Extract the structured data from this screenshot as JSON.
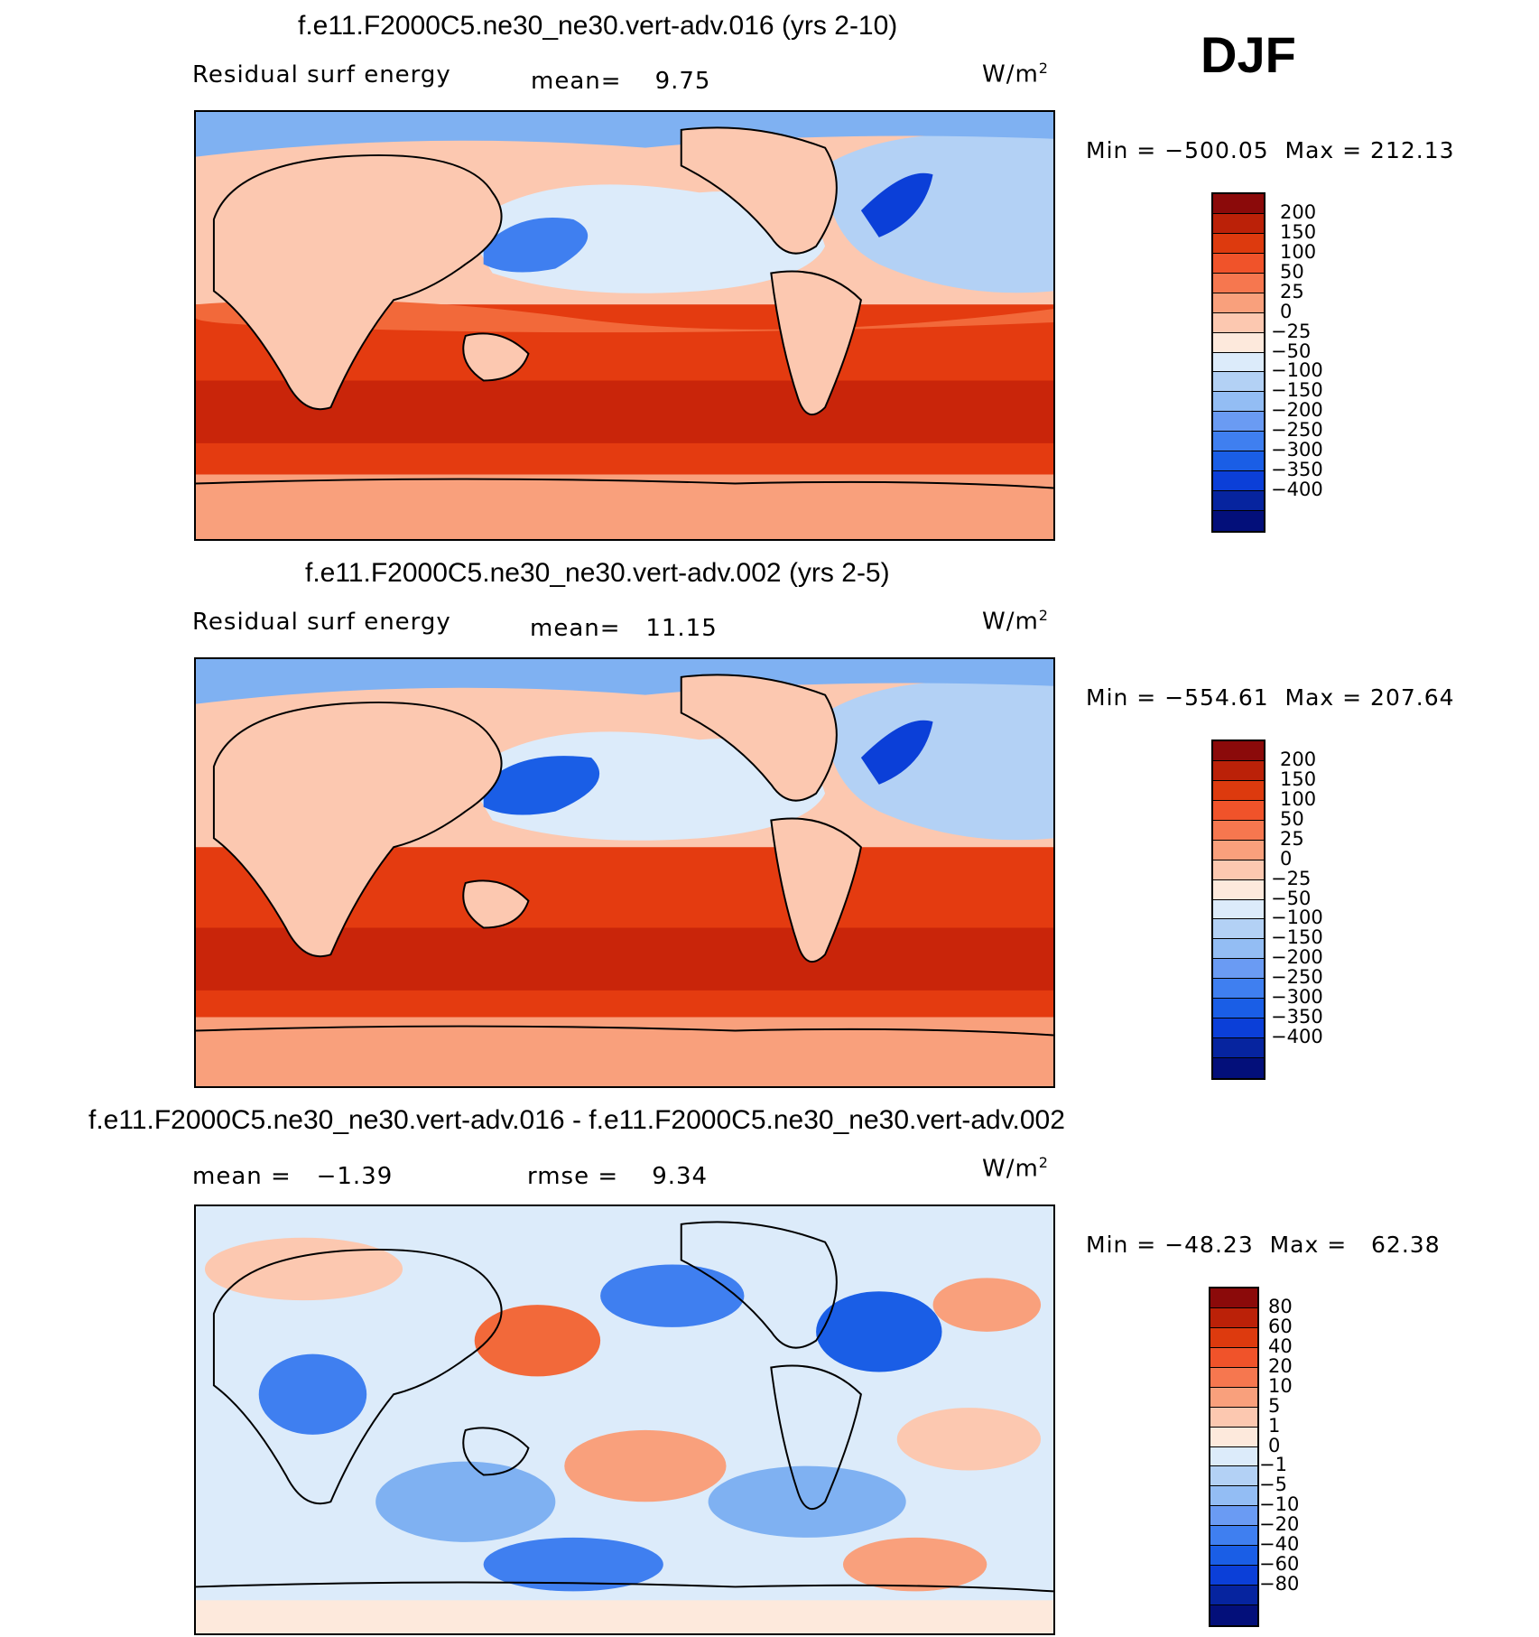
{
  "season": "DJF",
  "colors": {
    "fill_warm": [
      "#fcc8b0",
      "#f9a07c",
      "#f2693a",
      "#e43b10",
      "#c9250a"
    ],
    "fill_cool": [
      "#dcebfa",
      "#b3d1f5",
      "#7fb1f2",
      "#3f7ff0",
      "#0b3fd8",
      "#06249f"
    ],
    "land": "#fcc8b0"
  },
  "panels": [
    {
      "title": "f.e11.F2000C5.ne30_ne30.vert-adv.016 (yrs 2-10)",
      "left_label": "Residual surf energy",
      "center_label": "mean=    9.75",
      "units_base": "W/m",
      "units_exp": "2",
      "minmax": "Min = −500.05  Max = 212.13",
      "colorbar": {
        "colors": [
          "#8b0a0a",
          "#bb2108",
          "#dd3a0e",
          "#f0532a",
          "#f6774f",
          "#f9a07c",
          "#fcc8b0",
          "#fde9dc",
          "#dcebfa",
          "#b3d1f5",
          "#93bdf4",
          "#6a9bf3",
          "#3f7ff0",
          "#1a5ee6",
          "#0b3fd8",
          "#06249f",
          "#030f7a"
        ],
        "labels": [
          "200",
          "150",
          "100",
          "50",
          "25",
          "0",
          "−25",
          "−50",
          "−100",
          "−150",
          "−200",
          "−250",
          "−300",
          "−350",
          "−400"
        ]
      }
    },
    {
      "title": "f.e11.F2000C5.ne30_ne30.vert-adv.002 (yrs 2-5)",
      "left_label": "Residual surf energy",
      "center_label": "mean=   11.15",
      "units_base": "W/m",
      "units_exp": "2",
      "minmax": "Min = −554.61  Max = 207.64",
      "colorbar": {
        "colors": [
          "#8b0a0a",
          "#bb2108",
          "#dd3a0e",
          "#f0532a",
          "#f6774f",
          "#f9a07c",
          "#fcc8b0",
          "#fde9dc",
          "#dcebfa",
          "#b3d1f5",
          "#93bdf4",
          "#6a9bf3",
          "#3f7ff0",
          "#1a5ee6",
          "#0b3fd8",
          "#06249f",
          "#030f7a"
        ],
        "labels": [
          "200",
          "150",
          "100",
          "50",
          "25",
          "0",
          "−25",
          "−50",
          "−100",
          "−150",
          "−200",
          "−250",
          "−300",
          "−350",
          "−400"
        ]
      }
    },
    {
      "title": "f.e11.F2000C5.ne30_ne30.vert-adv.016 - f.e11.F2000C5.ne30_ne30.vert-adv.002",
      "left_label": "mean =   −1.39",
      "center_label": "rmse =    9.34",
      "units_base": "W/m",
      "units_exp": "2",
      "minmax": "Min = −48.23  Max =   62.38",
      "colorbar": {
        "colors": [
          "#8b0a0a",
          "#bb2108",
          "#dd3a0e",
          "#f0532a",
          "#f6774f",
          "#f9a07c",
          "#fcc8b0",
          "#fde9dc",
          "#dcebfa",
          "#b3d1f5",
          "#93bdf4",
          "#6a9bf3",
          "#3f7ff0",
          "#1a5ee6",
          "#0b3fd8",
          "#06249f",
          "#030f7a"
        ],
        "labels": [
          "80",
          "60",
          "40",
          "20",
          "10",
          "5",
          "1",
          "0",
          "−1",
          "−5",
          "−10",
          "−20",
          "−40",
          "−60",
          "−80"
        ]
      }
    }
  ]
}
